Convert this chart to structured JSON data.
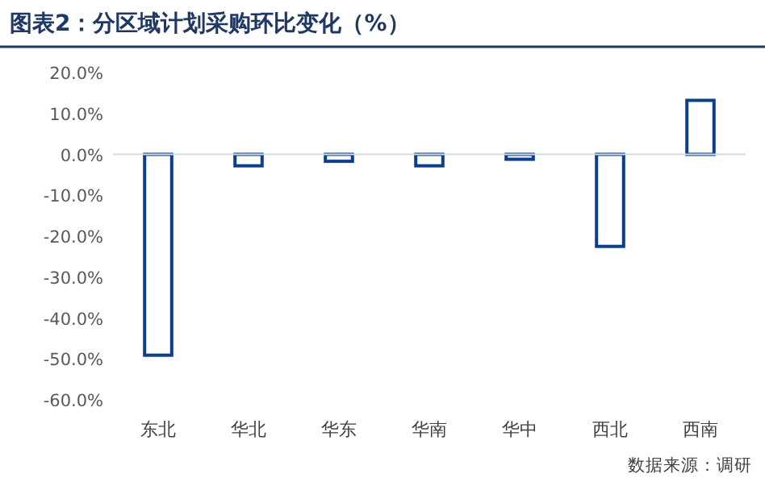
{
  "chart_data": {
    "type": "bar",
    "title": "图表2：分区域计划采购环比变化（%）",
    "categories": [
      "东北",
      "华北",
      "华东",
      "华南",
      "华中",
      "西北",
      "西南"
    ],
    "values": [
      -49.1,
      -2.8,
      -1.7,
      -2.8,
      -1.2,
      -22.5,
      13.2
    ],
    "color": "#0b3f8c",
    "ylim": [
      -60,
      20
    ],
    "yticks": [
      {
        "value": 20,
        "label": "20.0%"
      },
      {
        "value": 10,
        "label": "10.0%"
      },
      {
        "value": 0,
        "label": "0.0%"
      },
      {
        "value": -10,
        "label": "-10.0%"
      },
      {
        "value": -20,
        "label": "-20.0%"
      },
      {
        "value": -30,
        "label": "-30.0%"
      },
      {
        "value": -40,
        "label": "-40.0%"
      },
      {
        "value": -50,
        "label": "-50.0%"
      },
      {
        "value": -60,
        "label": "-60.0%"
      }
    ],
    "ref_lines": [
      {
        "axis": "y",
        "value": 0,
        "color": "#d9d9d9"
      }
    ],
    "annotations": [
      "数据来源：调研"
    ]
  }
}
